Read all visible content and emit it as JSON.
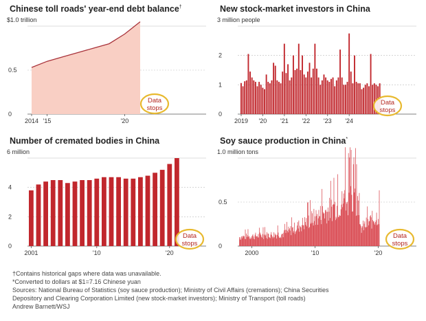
{
  "chart_data": [
    {
      "type": "area",
      "title": "Chinese toll roads' year-end debt balance",
      "title_mark": "†",
      "unit_label": "$1.0 trillion",
      "y_ticks": [
        "0",
        "0.5"
      ],
      "x_tick_labels": [
        "2014",
        "'15",
        "'20"
      ],
      "ylim": [
        0,
        1.0
      ],
      "x": [
        2014,
        2015,
        2016,
        2017,
        2018,
        2019,
        2020,
        2021
      ],
      "values": [
        0.53,
        0.6,
        0.65,
        0.7,
        0.75,
        0.8,
        0.91,
        1.05
      ],
      "color": "#f9cfc4",
      "line_color": "#a8323a",
      "annotation": [
        "Data",
        "stops"
      ]
    },
    {
      "type": "bar",
      "title": "New stock-market investors in China",
      "unit_label": "3 million people",
      "y_ticks": [
        "0",
        "1",
        "2"
      ],
      "x_tick_labels": [
        "2019",
        "'20",
        "'21",
        "'22",
        "'23",
        "'24"
      ],
      "ylim": [
        0,
        3
      ],
      "x_start": "2019-01",
      "values": [
        1.06,
        0.95,
        1.12,
        1.15,
        2.05,
        1.45,
        1.25,
        1.15,
        1.1,
        0.95,
        1.1,
        1.0,
        0.9,
        0.85,
        1.35,
        1.1,
        1.05,
        1.15,
        1.75,
        1.65,
        1.15,
        1.1,
        1.05,
        1.45,
        2.4,
        1.4,
        1.7,
        1.15,
        1.25,
        2.0,
        1.5,
        1.55,
        2.4,
        1.5,
        2.0,
        1.35,
        1.25,
        1.45,
        1.75,
        1.25,
        1.55,
        2.4,
        1.55,
        1.25,
        1.0,
        1.15,
        1.35,
        1.25,
        1.15,
        1.1,
        1.2,
        1.25,
        0.95,
        1.15,
        1.25,
        2.2,
        1.25,
        1.0,
        1.0,
        1.1,
        2.75,
        1.45,
        1.05,
        2.0,
        1.1,
        1.05,
        1.05,
        0.85,
        0.9,
        1.0,
        1.05,
        0.95,
        2.05,
        1.0,
        1.05,
        1.0,
        0.95,
        1.05
      ],
      "color": "#c1272d",
      "annotation": [
        "Data",
        "stops"
      ]
    },
    {
      "type": "bar",
      "title": "Number of cremated bodies in China",
      "unit_label": "6 million",
      "y_ticks": [
        "0",
        "2",
        "4"
      ],
      "x_tick_labels": [
        "2001",
        "'10",
        "'20"
      ],
      "ylim": [
        0,
        6
      ],
      "x": [
        2001,
        2002,
        2003,
        2004,
        2005,
        2006,
        2007,
        2008,
        2009,
        2010,
        2011,
        2012,
        2013,
        2014,
        2015,
        2016,
        2017,
        2018,
        2019,
        2020,
        2021
      ],
      "values": [
        3.8,
        4.2,
        4.4,
        4.5,
        4.5,
        4.3,
        4.4,
        4.5,
        4.5,
        4.6,
        4.7,
        4.7,
        4.7,
        4.6,
        4.6,
        4.7,
        4.8,
        5.0,
        5.2,
        5.6,
        6.0
      ],
      "color": "#c1272d",
      "annotation": [
        "Data",
        "stops"
      ]
    },
    {
      "type": "bar",
      "title": "Soy sauce production in China",
      "title_mark": "*",
      "unit_label": "1.0 million tons",
      "y_ticks": [
        "0",
        "0.5"
      ],
      "x_tick_labels": [
        "2000",
        "'10",
        "'20"
      ],
      "ylim": [
        0,
        1.0
      ],
      "x_range": [
        1998,
        2022
      ],
      "color": "#d9474f",
      "annotation": [
        "Data",
        "stops"
      ]
    }
  ],
  "footnotes": [
    "†Contains historical gaps where data was unavailable.",
    "*Converted to dollars at $1=7.16 Chinese yuan",
    "Sources: National Bureau of Statistics (soy sauce production); Ministry of Civil Affairs (cremations); China Securities",
    "Depository and Clearing Corporation Limited (new stock-market investors); Ministry of Transport (toll roads)",
    "Andrew Barnett/WSJ"
  ],
  "highlight_color": "#e8b92e"
}
